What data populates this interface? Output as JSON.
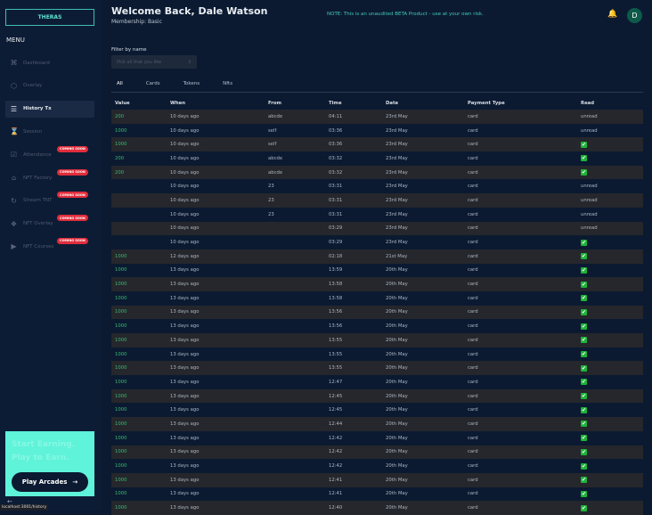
{
  "sidebar": {
    "logo": "THERAS",
    "menu_title": "MENU",
    "items": [
      {
        "label": "Dashboard",
        "icon": "grid-icon",
        "glyph": "⌘",
        "badge": ""
      },
      {
        "label": "Overlay",
        "icon": "cube-icon",
        "glyph": "⬡",
        "badge": ""
      },
      {
        "label": "History Tx",
        "icon": "list-icon",
        "glyph": "☰",
        "badge": "",
        "active": true
      },
      {
        "label": "Session",
        "icon": "hourglass-icon",
        "glyph": "⌛",
        "badge": ""
      },
      {
        "label": "Attendance",
        "icon": "calendar-check-icon",
        "glyph": "☑",
        "badge": "COMING SOON"
      },
      {
        "label": "NFT Factory",
        "icon": "factory-icon",
        "glyph": "⌂",
        "badge": "COMING SOON"
      },
      {
        "label": "Stream TNT",
        "icon": "refresh-icon",
        "glyph": "↻",
        "badge": "COMING SOON"
      },
      {
        "label": "NFT Overlay",
        "icon": "cubes-icon",
        "glyph": "❖",
        "badge": "COMING SOON"
      },
      {
        "label": "NFT Courses",
        "icon": "video-icon",
        "glyph": "▶",
        "badge": "COMING SOON"
      }
    ],
    "promo": {
      "line1": "Start Earning.",
      "line2": "Play to Earn.",
      "button": "Play Arcades",
      "arrow": "→"
    },
    "back": "←",
    "status_url": "localhost:3001/history"
  },
  "header": {
    "title": "Welcome Back, Dale Watson",
    "membership": "Membership: Basic",
    "note": "NOTE: This is an unaudited BETA Product - use at your own risk.",
    "bell": "🔔",
    "avatar": "D"
  },
  "filter": {
    "label": "Filter by name",
    "placeholder": "Pick all that you like",
    "chevron": "⇕"
  },
  "tabs": [
    {
      "label": "All",
      "active": true
    },
    {
      "label": "Cards"
    },
    {
      "label": "Tokens"
    },
    {
      "label": "Nfts"
    }
  ],
  "table": {
    "columns": [
      "Value",
      "When",
      "From",
      "Time",
      "Date",
      "Payment Type",
      "Read"
    ],
    "rows": [
      [
        "200",
        "10 days ago",
        "abcde",
        "04:11",
        "23rd May",
        "card",
        "unread"
      ],
      [
        "1000",
        "10 days ago",
        "self",
        "03:36",
        "23rd May",
        "card",
        "unread"
      ],
      [
        "1000",
        "10 days ago",
        "self",
        "03:36",
        "23rd May",
        "card",
        "✔"
      ],
      [
        "200",
        "10 days ago",
        "abcde",
        "03:32",
        "23rd May",
        "card",
        "✔"
      ],
      [
        "200",
        "10 days ago",
        "abcde",
        "03:32",
        "23rd May",
        "card",
        "✔"
      ],
      [
        "",
        "10 days ago",
        "23",
        "03:31",
        "23rd May",
        "card",
        "unread"
      ],
      [
        "",
        "10 days ago",
        "23",
        "03:31",
        "23rd May",
        "card",
        "unread"
      ],
      [
        "",
        "10 days ago",
        "23",
        "03:31",
        "23rd May",
        "card",
        "unread"
      ],
      [
        "",
        "10 days ago",
        "",
        "03:29",
        "23rd May",
        "card",
        "unread"
      ],
      [
        "",
        "10 days ago",
        "",
        "03:29",
        "23rd May",
        "card",
        "✔"
      ],
      [
        "1000",
        "12 days ago",
        "",
        "02:18",
        "21st May",
        "card",
        "✔"
      ],
      [
        "1000",
        "13 days ago",
        "",
        "13:59",
        "20th May",
        "card",
        "✔"
      ],
      [
        "1000",
        "13 days ago",
        "",
        "13:58",
        "20th May",
        "card",
        "✔"
      ],
      [
        "1000",
        "13 days ago",
        "",
        "13:58",
        "20th May",
        "card",
        "✔"
      ],
      [
        "1000",
        "13 days ago",
        "",
        "13:56",
        "20th May",
        "card",
        "✔"
      ],
      [
        "1000",
        "13 days ago",
        "",
        "13:56",
        "20th May",
        "card",
        "✔"
      ],
      [
        "1000",
        "13 days ago",
        "",
        "13:55",
        "20th May",
        "card",
        "✔"
      ],
      [
        "1000",
        "13 days ago",
        "",
        "13:55",
        "20th May",
        "card",
        "✔"
      ],
      [
        "1000",
        "13 days ago",
        "",
        "13:55",
        "20th May",
        "card",
        "✔"
      ],
      [
        "1000",
        "13 days ago",
        "",
        "12:47",
        "20th May",
        "card",
        "✔"
      ],
      [
        "1000",
        "13 days ago",
        "",
        "12:45",
        "20th May",
        "card",
        "✔"
      ],
      [
        "1000",
        "13 days ago",
        "",
        "12:45",
        "20th May",
        "card",
        "✔"
      ],
      [
        "1000",
        "13 days ago",
        "",
        "12:44",
        "20th May",
        "card",
        "✔"
      ],
      [
        "1000",
        "13 days ago",
        "",
        "12:42",
        "20th May",
        "card",
        "✔"
      ],
      [
        "1000",
        "13 days ago",
        "",
        "12:42",
        "20th May",
        "card",
        "✔"
      ],
      [
        "1000",
        "13 days ago",
        "",
        "12:42",
        "20th May",
        "card",
        "✔"
      ],
      [
        "1000",
        "13 days ago",
        "",
        "12:41",
        "20th May",
        "card",
        "✔"
      ],
      [
        "1000",
        "13 days ago",
        "",
        "12:41",
        "20th May",
        "card",
        "✔"
      ],
      [
        "1000",
        "13 days ago",
        "",
        "12:40",
        "20th May",
        "card",
        "✔"
      ]
    ]
  }
}
